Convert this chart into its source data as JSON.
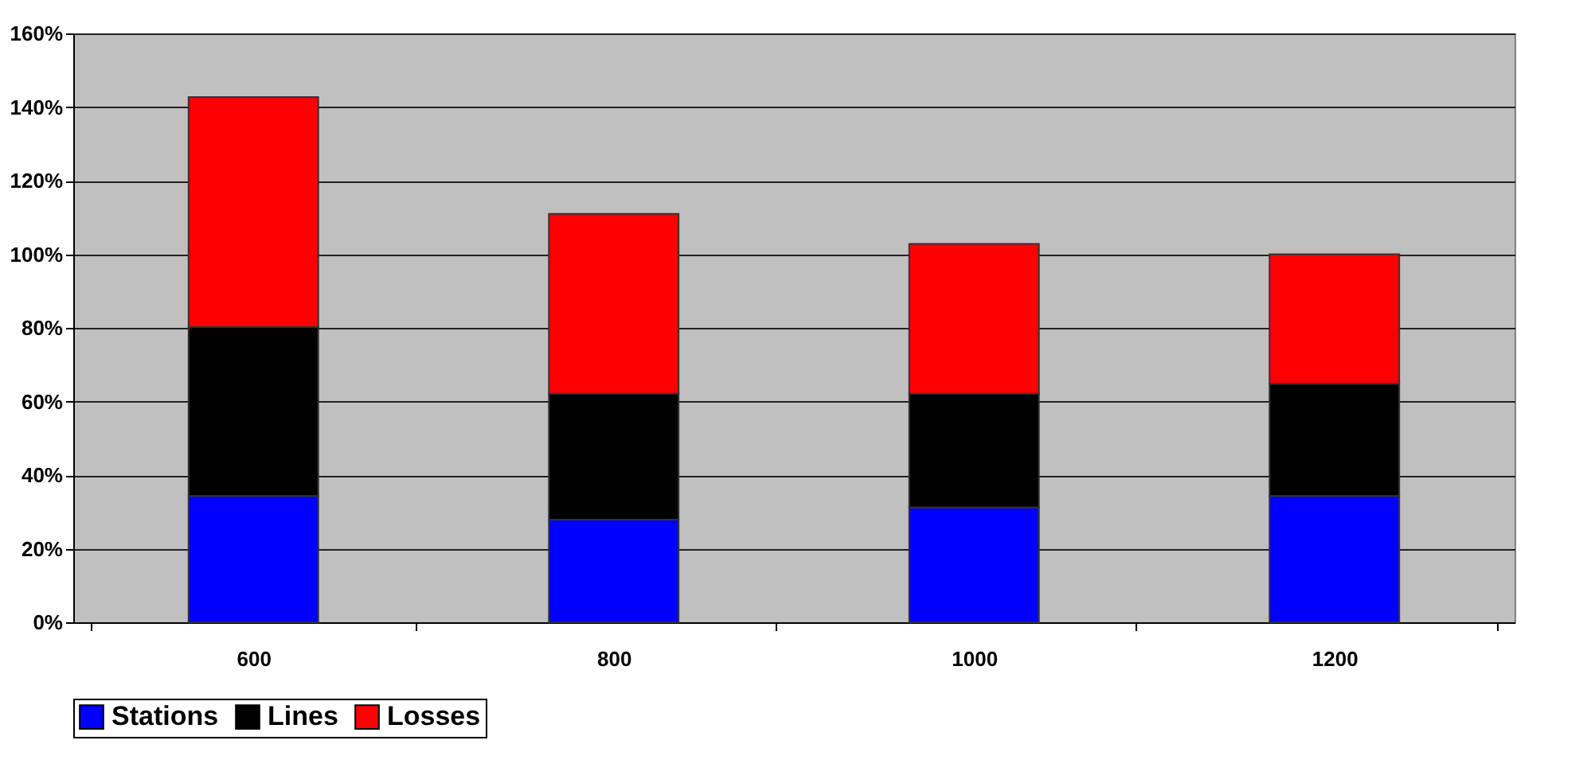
{
  "chart_data": {
    "type": "bar",
    "stacked": true,
    "categories": [
      "600",
      "800",
      "1000",
      "1200"
    ],
    "series": [
      {
        "name": "Stations",
        "color": "#0000ff",
        "values": [
          34.3,
          27.9,
          31.2,
          34.3
        ]
      },
      {
        "name": "Lines",
        "color": "#000000",
        "values": [
          45.9,
          34.2,
          30.9,
          30.5
        ]
      },
      {
        "name": "Losses",
        "color": "#ff0000",
        "values": [
          62.5,
          48.9,
          40.7,
          35.2
        ]
      }
    ],
    "ylim": [
      0,
      160
    ],
    "yticks": [
      {
        "value": 0,
        "label": "0%"
      },
      {
        "value": 20,
        "label": "20%"
      },
      {
        "value": 40,
        "label": "40%"
      },
      {
        "value": 60,
        "label": "60%"
      },
      {
        "value": 80,
        "label": "80%"
      },
      {
        "value": 100,
        "label": "100%"
      },
      {
        "value": 120,
        "label": "120%"
      },
      {
        "value": 140,
        "label": "140%"
      },
      {
        "value": 160,
        "label": "160%"
      }
    ],
    "grid": "y",
    "legend": "bottom"
  }
}
